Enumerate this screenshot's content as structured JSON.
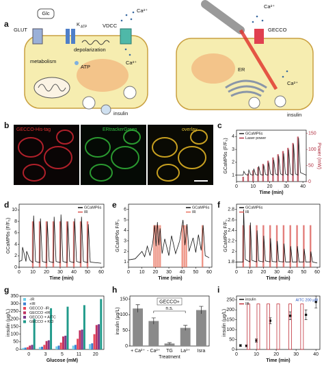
{
  "diagram": {
    "panel": "a",
    "left": {
      "glc": "Glc",
      "glut": "GLUT",
      "katp": "K",
      "katp_sub": "ATP",
      "vdcc": "VDCC",
      "ca_out": "Ca²⁺",
      "metabolism": "metabolism",
      "depolarization": "depolarization",
      "atp": "ATP",
      "ca_in": "Ca²⁺",
      "insulin": "insulin"
    },
    "right": {
      "ca_out": "Ca²⁺",
      "gecco": "GECCO",
      "er": "ER",
      "ca_in": "Ca²⁺",
      "insulin": "insulin"
    }
  },
  "images": {
    "panel": "b",
    "labels": [
      "GECCO-His-tag",
      "ERtrackerGreen",
      "overlay"
    ]
  },
  "chart_data": [
    {
      "type": "line",
      "label": "c",
      "xlabel": "Time (min)",
      "ylabel": "GCaMP6s (F/F₀)",
      "y2label": "Power (mW)",
      "xlim": [
        0,
        42
      ],
      "xticks": [
        0,
        10,
        20,
        30,
        40
      ],
      "ylim": [
        0.5,
        4.5
      ],
      "yticks": [
        1,
        2,
        3,
        4
      ],
      "y2lim": [
        0,
        160
      ],
      "y2ticks": [
        0,
        50,
        100,
        150
      ],
      "legend": "upper left",
      "series": [
        {
          "name": "GCaMP6s",
          "color": "#222222",
          "x": [
            0,
            4,
            4.4,
            5.5,
            7,
            7.4,
            8.5,
            10,
            10.4,
            11.5,
            13,
            13.4,
            14.5,
            16,
            16.4,
            17.5,
            19,
            19.4,
            20.5,
            22,
            22.4,
            23.5,
            25,
            25.4,
            26.5,
            28,
            28.4,
            29.5,
            31,
            31.4,
            32.5,
            34,
            34.4,
            35.5,
            37,
            37.4,
            38.5,
            42
          ],
          "values": [
            1.0,
            1.0,
            1.3,
            1.05,
            1.0,
            1.4,
            1.05,
            1.0,
            1.5,
            1.05,
            1.0,
            1.7,
            1.05,
            1.0,
            1.8,
            1.05,
            1.0,
            2.0,
            1.1,
            1.0,
            2.2,
            1.1,
            1.0,
            2.5,
            1.1,
            1.0,
            2.7,
            1.1,
            1.0,
            3.0,
            1.1,
            1.0,
            3.4,
            1.1,
            1.0,
            3.9,
            1.2,
            1.0
          ]
        },
        {
          "name": "Laser power",
          "color": "#b03040",
          "axis": "y2",
          "style": "pulse",
          "x": [
            4,
            7,
            10,
            13,
            16,
            19,
            22,
            25,
            28,
            31,
            34,
            37
          ],
          "values": [
            15,
            25,
            35,
            45,
            55,
            65,
            75,
            85,
            95,
            105,
            120,
            140
          ]
        }
      ]
    },
    {
      "type": "line",
      "label": "d",
      "xlabel": "Time (min)",
      "ylabel": "GCaMP6s (F/F₀)",
      "xlim": [
        0,
        62
      ],
      "xticks": [
        0,
        10,
        20,
        30,
        40,
        50,
        60
      ],
      "ylim": [
        0,
        11
      ],
      "yticks": [
        0,
        2,
        4,
        6,
        8,
        10
      ],
      "legend": "upper right",
      "series": [
        {
          "name": "GCaMP6s",
          "color": "#111111",
          "x": [
            0,
            2,
            2.5,
            5,
            5.5,
            8,
            10,
            10.6,
            12,
            15,
            15.6,
            17,
            20,
            20.6,
            22,
            25,
            25.6,
            27,
            30,
            30.6,
            32,
            35,
            35.6,
            37,
            40,
            40.6,
            42,
            45,
            45.6,
            47,
            50,
            50.6,
            52,
            60
          ],
          "values": [
            1.0,
            1.2,
            3.5,
            1.0,
            2.8,
            1.2,
            0.8,
            9,
            1.0,
            0.8,
            8.5,
            1.0,
            0.8,
            8,
            1.0,
            0.8,
            8.8,
            1.0,
            0.8,
            9.2,
            1.0,
            0.8,
            8,
            1.0,
            0.8,
            8.5,
            1.0,
            0.8,
            8.8,
            1.0,
            0.8,
            7.5,
            0.9,
            0.7
          ]
        },
        {
          "name": "IR",
          "color": "#d9534f",
          "style": "pulse",
          "x": [
            10,
            15,
            20,
            25,
            30,
            35,
            40,
            45,
            50
          ],
          "values": [
            8,
            8,
            8,
            8,
            8,
            8,
            8,
            8,
            8
          ]
        }
      ]
    },
    {
      "type": "line",
      "label": "e",
      "xlabel": "Time (min)",
      "ylabel": "GCaMP6s F/F₀",
      "xlim": [
        0,
        62
      ],
      "xticks": [
        0,
        10,
        20,
        30,
        40,
        50,
        60
      ],
      "ylim": [
        0.5,
        6.5
      ],
      "yticks": [
        1,
        2,
        3,
        4,
        5,
        6
      ],
      "legend": "upper right",
      "series": [
        {
          "name": "GCaMP6s",
          "color": "#111111",
          "x": [
            0,
            5,
            10,
            12,
            14,
            16,
            18,
            19.5,
            20.5,
            21.5,
            22.5,
            23.5,
            25,
            27,
            30,
            32,
            35,
            38,
            40.5,
            42,
            43.5,
            45,
            48,
            50,
            52,
            54,
            55.5,
            57,
            60
          ],
          "values": [
            1.2,
            1.3,
            2.0,
            1.5,
            2.5,
            1.6,
            2.8,
            4.5,
            2.5,
            4.8,
            2.6,
            4.2,
            1.8,
            3.2,
            1.6,
            3.5,
            1.8,
            3.0,
            5.0,
            2.6,
            4.6,
            2.0,
            3.3,
            1.9,
            3.6,
            2.1,
            4.5,
            1.6,
            1.4
          ]
        },
        {
          "name": "IR",
          "color": "#e8735f",
          "style": "pulse",
          "x": [
            19,
            20.5,
            22,
            23.5,
            40,
            41.5,
            43,
            55
          ],
          "values": [
            4.5,
            4.5,
            4.5,
            4.5,
            4.5,
            4.5,
            4.5,
            4.5
          ]
        }
      ]
    },
    {
      "type": "line",
      "label": "f",
      "xlabel": "Time (min)",
      "ylabel": "GCaMP6s F/F₀",
      "xlim": [
        0,
        62
      ],
      "xticks": [
        0,
        10,
        20,
        30,
        40,
        50,
        60
      ],
      "ylim": [
        1.7,
        2.9
      ],
      "yticks": [
        1.8,
        2,
        2.2,
        2.4,
        2.6,
        2.8
      ],
      "legend": "upper left",
      "series": [
        {
          "name": "GCaMP6s",
          "color": "#111111",
          "x": [
            0,
            4.9,
            5.3,
            6.5,
            9.9,
            10.3,
            11.5,
            14.9,
            15.3,
            16.5,
            19.9,
            20.3,
            21.5,
            24.9,
            25.3,
            26.5,
            29.9,
            30.3,
            31.5,
            34.9,
            35.3,
            36.5,
            39.9,
            40.3,
            41.5,
            44.9,
            45.3,
            46.5,
            49.9,
            50.3,
            51.5,
            54.9,
            55.3,
            56.5,
            60
          ],
          "values": [
            1.8,
            1.8,
            2.8,
            1.85,
            1.8,
            2.55,
            1.83,
            1.8,
            2.4,
            1.82,
            1.8,
            2.3,
            1.82,
            1.8,
            2.25,
            1.81,
            1.8,
            2.2,
            1.81,
            1.8,
            2.15,
            1.8,
            1.8,
            2.1,
            1.8,
            1.8,
            2.1,
            1.8,
            1.8,
            2.05,
            1.8,
            1.8,
            2.0,
            1.8,
            1.78
          ]
        },
        {
          "name": "IR",
          "color": "#d9534f",
          "style": "pulse",
          "x": [
            5,
            10,
            15,
            20,
            25,
            30,
            35,
            40,
            45,
            50,
            55
          ],
          "values": [
            2.5,
            2.5,
            2.5,
            2.5,
            2.5,
            2.5,
            2.5,
            2.5,
            2.5,
            2.5,
            2.5
          ]
        }
      ]
    },
    {
      "type": "grouped_bar",
      "label": "g",
      "xlabel": "Glucose (mM)",
      "ylabel": "insulin (µg/L)",
      "categories": [
        "0",
        "3",
        "5",
        "11",
        "20"
      ],
      "ylim": [
        0,
        350
      ],
      "yticks": [
        0,
        50,
        100,
        150,
        200,
        250,
        300,
        350
      ],
      "legend": "upper left",
      "series": [
        {
          "name": "-IR",
          "color": "#6fd0e8",
          "values": [
            10,
            15,
            20,
            25,
            35
          ]
        },
        {
          "name": "+IR",
          "color": "#3a7fd0",
          "values": [
            12,
            18,
            25,
            30,
            40
          ]
        },
        {
          "name": "GECCO -IR",
          "color": "#e8485a",
          "values": [
            15,
            30,
            45,
            70,
            100
          ]
        },
        {
          "name": "GECCO +IR",
          "color": "#c03060",
          "values": [
            25,
            55,
            85,
            125,
            160
          ]
        },
        {
          "name": "GECCO + AITC",
          "color": "#7a3a8a",
          "values": [
            30,
            60,
            90,
            130,
            165
          ]
        },
        {
          "name": "GECCO + KCl",
          "color": "#1f9a8a",
          "values": [
            200,
            270,
            280,
            290,
            330
          ]
        }
      ]
    },
    {
      "type": "bar",
      "label": "h",
      "title": "GECCO+",
      "xlabel": "Treatment",
      "ylabel": "insulin (µg/L)",
      "annotation": "n.s.",
      "categories": [
        "+ Ca²⁺",
        "- Ca²⁺",
        "TG",
        "La³⁺",
        "Isra"
      ],
      "values": [
        120,
        80,
        8,
        58,
        115
      ],
      "errors": [
        12,
        10,
        3,
        8,
        12
      ],
      "color": "#8a8a8a",
      "ylim": [
        0,
        160
      ],
      "yticks": [
        0,
        50,
        100,
        150
      ]
    },
    {
      "type": "scatter",
      "label": "i",
      "xlabel": "Time (min)",
      "ylabel": "insulin (µg/L)",
      "annotation": "AITC 200 µM",
      "xlim": [
        0,
        42
      ],
      "xticks": [
        0,
        10,
        20,
        30,
        40
      ],
      "ylim": [
        0,
        270
      ],
      "yticks": [
        0,
        50,
        100,
        150,
        200,
        250
      ],
      "legend": "upper left",
      "series": [
        {
          "name": "insulin",
          "color": "#111111",
          "x": [
            2,
            5,
            10,
            17,
            27,
            35,
            40
          ],
          "values": [
            20,
            18,
            45,
            145,
            170,
            175,
            240
          ],
          "errors": [
            5,
            5,
            8,
            15,
            20,
            25,
            30
          ]
        },
        {
          "name": "IR",
          "color": "#c0303a",
          "style": "pulse",
          "x": [
            6,
            11,
            16,
            21,
            27,
            33
          ],
          "values": [
            230,
            230,
            230,
            230,
            230,
            230
          ]
        }
      ]
    }
  ]
}
